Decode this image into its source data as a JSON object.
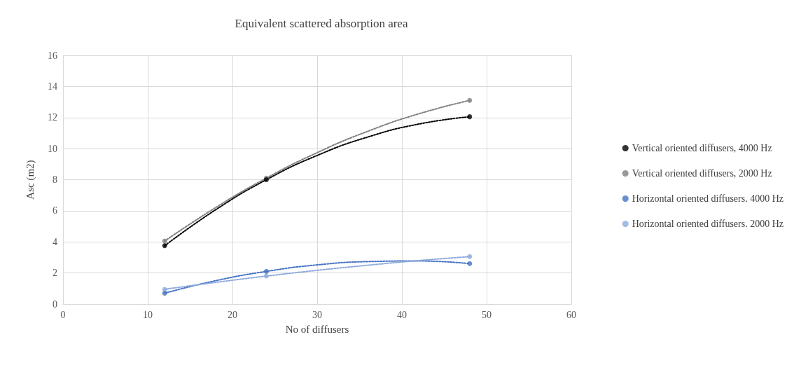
{
  "chart_data": {
    "type": "scatter",
    "title": "Equivalent scattered absorption area",
    "xlabel": "No of diffusers",
    "ylabel": "Asc (m2)",
    "xlim": [
      0,
      60
    ],
    "xticks": [
      0,
      10,
      20,
      30,
      40,
      50,
      60
    ],
    "ylim": [
      0,
      16
    ],
    "yticks": [
      0,
      2,
      4,
      6,
      8,
      10,
      12,
      14,
      16
    ],
    "grid": true,
    "legend": "right",
    "marker": "circle",
    "series": [
      {
        "name": "Vertical oriented diffusers, 4000 Hz",
        "color": "#000000",
        "x": [
          12,
          24,
          48
        ],
        "values": [
          3.75,
          8.0,
          12.05
        ]
      },
      {
        "name": "Vertical oriented diffusers, 2000 Hz",
        "color": "#7f7f7f",
        "x": [
          12,
          24,
          48
        ],
        "values": [
          4.05,
          8.1,
          13.1
        ]
      },
      {
        "name": "Horizontal oriented diffusers. 4000 Hz",
        "color": "#4472c4",
        "x": [
          12,
          24,
          48
        ],
        "values": [
          0.7,
          2.1,
          2.6
        ]
      },
      {
        "name": "Horizontal oriented diffusers. 2000 Hz",
        "color": "#8faadc",
        "x": [
          12,
          24,
          48
        ],
        "values": [
          0.95,
          1.8,
          3.05
        ]
      },
      {
        "type": "line",
        "line_style": "dotted",
        "marker": "none",
        "color": "#000000",
        "x": [
          12,
          18,
          24,
          30,
          36,
          42,
          48
        ],
        "values": [
          3.75,
          6.06,
          8.0,
          9.56,
          10.75,
          11.58,
          12.05
        ]
      },
      {
        "type": "line",
        "line_style": "dotted",
        "marker": "none",
        "color": "#7f7f7f",
        "x": [
          12,
          18,
          24,
          30,
          36,
          42,
          48
        ],
        "values": [
          4.05,
          6.2,
          8.1,
          9.74,
          11.12,
          12.24,
          13.1
        ]
      },
      {
        "type": "line",
        "line_style": "dotted",
        "marker": "none",
        "color": "#4472c4",
        "x": [
          12,
          18,
          24,
          30,
          36,
          42,
          48
        ],
        "values": [
          0.7,
          1.5,
          2.1,
          2.52,
          2.73,
          2.77,
          2.6
        ]
      },
      {
        "type": "line",
        "line_style": "dotted",
        "marker": "none",
        "color": "#8faadc",
        "x": [
          12,
          18,
          24,
          30,
          36,
          42,
          48
        ],
        "values": [
          0.95,
          1.39,
          1.8,
          2.17,
          2.5,
          2.8,
          3.05
        ]
      }
    ]
  }
}
